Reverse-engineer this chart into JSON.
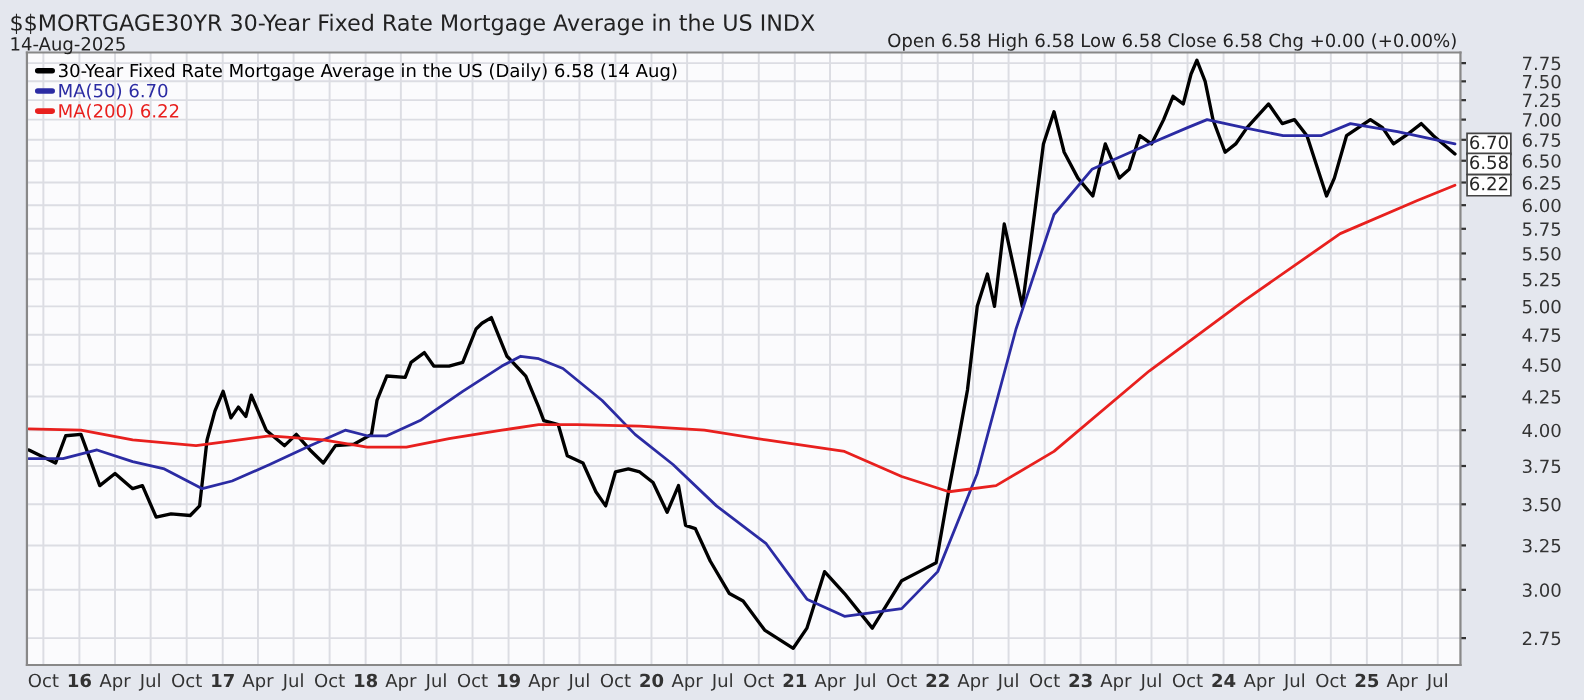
{
  "chart_data": {
    "type": "line",
    "title": "$$MORTGAGE30YR 30-Year Fixed Rate Mortgage Average in the US INDX",
    "subtitle": "14-Aug-2025",
    "annotations": [
      "Open 6.58 High 6.58 Low 6.58 Close 6.58 Chg +0.00 (+0.00%)",
      {
        "text": "6.70",
        "x": "2025-08-14",
        "y": 6.7
      },
      {
        "text": "6.58",
        "x": "2025-08-14",
        "y": 6.58
      },
      {
        "text": "6.22",
        "x": "2025-08-14",
        "y": 6.22
      }
    ],
    "legend": "top left",
    "log": true,
    "grid": true,
    "line_style": "solid",
    "xlim": [
      "2015-08-20",
      "2025-08-28"
    ],
    "xticks": [
      {
        "value": "2015-10-01",
        "label": "Oct"
      },
      {
        "value": "2016-01-01",
        "label": "16"
      },
      {
        "value": "2016-04-01",
        "label": "Apr"
      },
      {
        "value": "2016-07-01",
        "label": "Jul"
      },
      {
        "value": "2016-10-01",
        "label": "Oct"
      },
      {
        "value": "2017-01-01",
        "label": "17"
      },
      {
        "value": "2017-04-01",
        "label": "Apr"
      },
      {
        "value": "2017-07-01",
        "label": "Jul"
      },
      {
        "value": "2017-10-01",
        "label": "Oct"
      },
      {
        "value": "2018-01-01",
        "label": "18"
      },
      {
        "value": "2018-04-01",
        "label": "Apr"
      },
      {
        "value": "2018-07-01",
        "label": "Jul"
      },
      {
        "value": "2018-10-01",
        "label": "Oct"
      },
      {
        "value": "2019-01-01",
        "label": "19"
      },
      {
        "value": "2019-04-01",
        "label": "Apr"
      },
      {
        "value": "2019-07-01",
        "label": "Jul"
      },
      {
        "value": "2019-10-01",
        "label": "Oct"
      },
      {
        "value": "2020-01-01",
        "label": "20"
      },
      {
        "value": "2020-04-01",
        "label": "Apr"
      },
      {
        "value": "2020-07-01",
        "label": "Jul"
      },
      {
        "value": "2020-10-01",
        "label": "Oct"
      },
      {
        "value": "2021-01-01",
        "label": "21"
      },
      {
        "value": "2021-04-01",
        "label": "Apr"
      },
      {
        "value": "2021-07-01",
        "label": "Jul"
      },
      {
        "value": "2021-10-01",
        "label": "Oct"
      },
      {
        "value": "2022-01-01",
        "label": "22"
      },
      {
        "value": "2022-04-01",
        "label": "Apr"
      },
      {
        "value": "2022-07-01",
        "label": "Jul"
      },
      {
        "value": "2022-10-01",
        "label": "Oct"
      },
      {
        "value": "2023-01-01",
        "label": "23"
      },
      {
        "value": "2023-04-01",
        "label": "Apr"
      },
      {
        "value": "2023-07-01",
        "label": "Jul"
      },
      {
        "value": "2023-10-01",
        "label": "Oct"
      },
      {
        "value": "2024-01-01",
        "label": "24"
      },
      {
        "value": "2024-04-01",
        "label": "Apr"
      },
      {
        "value": "2024-07-01",
        "label": "Jul"
      },
      {
        "value": "2024-10-01",
        "label": "Oct"
      },
      {
        "value": "2025-01-01",
        "label": "25"
      },
      {
        "value": "2025-04-01",
        "label": "Apr"
      },
      {
        "value": "2025-07-01",
        "label": "Jul"
      }
    ],
    "ylim": [
      2.62,
      7.9
    ],
    "yticks": [
      {
        "value": 2.75,
        "label": "2.75"
      },
      {
        "value": 3.0,
        "label": "3.00"
      },
      {
        "value": 3.25,
        "label": "3.25"
      },
      {
        "value": 3.5,
        "label": "3.50"
      },
      {
        "value": 3.75,
        "label": "3.75"
      },
      {
        "value": 4.0,
        "label": "4.00"
      },
      {
        "value": 4.25,
        "label": "4.25"
      },
      {
        "value": 4.5,
        "label": "4.50"
      },
      {
        "value": 4.75,
        "label": "4.75"
      },
      {
        "value": 5.0,
        "label": "5.00"
      },
      {
        "value": 5.25,
        "label": "5.25"
      },
      {
        "value": 5.5,
        "label": "5.50"
      },
      {
        "value": 5.75,
        "label": "5.75"
      },
      {
        "value": 6.0,
        "label": "6.00"
      },
      {
        "value": 6.25,
        "label": "6.25"
      },
      {
        "value": 6.5,
        "label": "6.50"
      },
      {
        "value": 6.75,
        "label": "6.75"
      },
      {
        "value": 7.0,
        "label": "7.00"
      },
      {
        "value": 7.25,
        "label": "7.25"
      },
      {
        "value": 7.5,
        "label": "7.50"
      },
      {
        "value": 7.75,
        "label": "7.75"
      }
    ],
    "series": [
      {
        "name": "30-Year Fixed Rate Mortgage Average in the US (Daily) 6.58 (14 Aug)",
        "color": "#000000",
        "x": [
          "2015-08-25",
          "2015-11-01",
          "2015-11-27",
          "2016-01-05",
          "2016-02-22",
          "2016-04-01",
          "2016-05-16",
          "2016-06-10",
          "2016-07-15",
          "2016-08-22",
          "2016-10-10",
          "2016-11-03",
          "2016-11-22",
          "2016-12-12",
          "2017-01-02",
          "2017-01-22",
          "2017-02-10",
          "2017-03-01",
          "2017-03-15",
          "2017-04-22",
          "2017-06-08",
          "2017-07-08",
          "2017-08-12",
          "2017-09-15",
          "2017-10-16",
          "2017-12-02",
          "2018-01-16",
          "2018-01-30",
          "2018-02-24",
          "2018-04-12",
          "2018-04-27",
          "2018-05-31",
          "2018-06-24",
          "2018-08-02",
          "2018-09-06",
          "2018-10-10",
          "2018-10-25",
          "2018-11-18",
          "2018-12-28",
          "2019-02-14",
          "2019-03-19",
          "2019-04-01",
          "2019-05-08",
          "2019-05-31",
          "2019-07-10",
          "2019-08-12",
          "2019-09-06",
          "2019-10-01",
          "2019-11-03",
          "2019-12-02",
          "2020-01-05",
          "2020-02-10",
          "2020-03-10",
          "2020-03-28",
          "2020-04-22",
          "2020-05-30",
          "2020-07-18",
          "2020-08-22",
          "2020-10-16",
          "2020-12-28",
          "2021-02-01",
          "2021-03-18",
          "2021-05-08",
          "2021-07-18",
          "2021-10-01",
          "2021-11-15",
          "2021-12-28",
          "2022-01-30",
          "2022-02-24",
          "2022-03-18",
          "2022-04-12",
          "2022-05-08",
          "2022-05-26",
          "2022-06-20",
          "2022-08-05",
          "2022-09-05",
          "2022-09-28",
          "2022-10-25",
          "2022-11-20",
          "2022-12-25",
          "2023-02-01",
          "2023-03-05",
          "2023-04-10",
          "2023-05-05",
          "2023-06-01",
          "2023-07-01",
          "2023-08-01",
          "2023-08-25",
          "2023-09-20",
          "2023-10-10",
          "2023-10-25",
          "2023-11-15",
          "2023-12-05",
          "2024-01-05",
          "2024-02-01",
          "2024-03-01",
          "2024-04-25",
          "2024-05-30",
          "2024-06-30",
          "2024-08-01",
          "2024-09-20",
          "2024-10-10",
          "2024-11-10",
          "2025-01-10",
          "2025-02-10",
          "2025-03-10",
          "2025-04-10",
          "2025-05-20",
          "2025-06-20",
          "2025-08-14"
        ],
        "values": [
          3.86,
          3.77,
          3.96,
          3.97,
          3.62,
          3.7,
          3.6,
          3.62,
          3.42,
          3.44,
          3.43,
          3.49,
          3.93,
          4.14,
          4.29,
          4.09,
          4.17,
          4.1,
          4.26,
          4.0,
          3.89,
          3.97,
          3.86,
          3.77,
          3.89,
          3.9,
          3.97,
          4.22,
          4.41,
          4.4,
          4.52,
          4.6,
          4.49,
          4.49,
          4.52,
          4.8,
          4.85,
          4.9,
          4.57,
          4.41,
          4.17,
          4.07,
          4.04,
          3.82,
          3.77,
          3.58,
          3.49,
          3.71,
          3.73,
          3.71,
          3.64,
          3.45,
          3.62,
          3.37,
          3.35,
          3.16,
          2.98,
          2.94,
          2.79,
          2.7,
          2.8,
          3.1,
          2.98,
          2.8,
          3.05,
          3.1,
          3.15,
          3.6,
          3.95,
          4.3,
          5.0,
          5.3,
          5.0,
          5.8,
          5.0,
          5.9,
          6.7,
          7.1,
          6.6,
          6.3,
          6.1,
          6.7,
          6.3,
          6.4,
          6.8,
          6.7,
          7.0,
          7.3,
          7.2,
          7.6,
          7.79,
          7.5,
          7.0,
          6.6,
          6.7,
          6.9,
          7.2,
          6.95,
          7.0,
          6.8,
          6.1,
          6.3,
          6.8,
          7.0,
          6.9,
          6.7,
          6.8,
          6.95,
          6.8,
          6.58
        ]
      },
      {
        "name": "MA(50) 6.70",
        "color": "#2b2ba3",
        "x": [
          "2015-08-25",
          "2015-11-20",
          "2016-02-15",
          "2016-05-16",
          "2016-08-05",
          "2016-11-10",
          "2017-01-25",
          "2017-05-01",
          "2017-08-12",
          "2017-11-10",
          "2018-01-05",
          "2018-02-24",
          "2018-05-20",
          "2018-09-06",
          "2018-12-15",
          "2019-02-01",
          "2019-03-19",
          "2019-05-20",
          "2019-08-28",
          "2019-11-20",
          "2020-02-25",
          "2020-06-15",
          "2020-10-20",
          "2021-02-01",
          "2021-05-08",
          "2021-10-01",
          "2022-01-01",
          "2022-04-12",
          "2022-07-20",
          "2022-10-25",
          "2023-01-30",
          "2023-06-25",
          "2023-10-01",
          "2023-11-20",
          "2024-02-22",
          "2024-06-01",
          "2024-09-06",
          "2024-11-20",
          "2025-03-20",
          "2025-08-14"
        ],
        "values": [
          3.8,
          3.8,
          3.86,
          3.78,
          3.73,
          3.6,
          3.65,
          3.76,
          3.89,
          4.0,
          3.96,
          3.96,
          4.07,
          4.29,
          4.49,
          4.57,
          4.55,
          4.47,
          4.22,
          3.97,
          3.76,
          3.49,
          3.26,
          2.95,
          2.86,
          2.9,
          3.1,
          3.7,
          4.8,
          5.9,
          6.4,
          6.7,
          6.9,
          7.0,
          6.9,
          6.8,
          6.8,
          6.95,
          6.85,
          6.7
        ]
      },
      {
        "name": "MA(200) 6.22",
        "color": "#e8201e",
        "x": [
          "2015-08-25",
          "2016-01-05",
          "2016-05-16",
          "2016-10-25",
          "2017-01-15",
          "2017-05-01",
          "2017-09-15",
          "2018-01-05",
          "2018-04-15",
          "2018-08-02",
          "2018-12-15",
          "2019-03-19",
          "2019-06-25",
          "2019-12-02",
          "2020-05-15",
          "2020-10-20",
          "2021-05-08",
          "2021-10-01",
          "2022-01-30",
          "2022-05-30",
          "2022-10-25",
          "2023-06-25",
          "2024-02-22",
          "2024-10-25",
          "2025-05-10",
          "2025-08-14"
        ],
        "values": [
          4.01,
          4.0,
          3.93,
          3.89,
          3.92,
          3.96,
          3.93,
          3.88,
          3.88,
          3.94,
          4.0,
          4.04,
          4.04,
          4.03,
          4.0,
          3.93,
          3.85,
          3.68,
          3.58,
          3.62,
          3.85,
          4.45,
          5.05,
          5.7,
          6.05,
          6.22
        ]
      }
    ]
  }
}
